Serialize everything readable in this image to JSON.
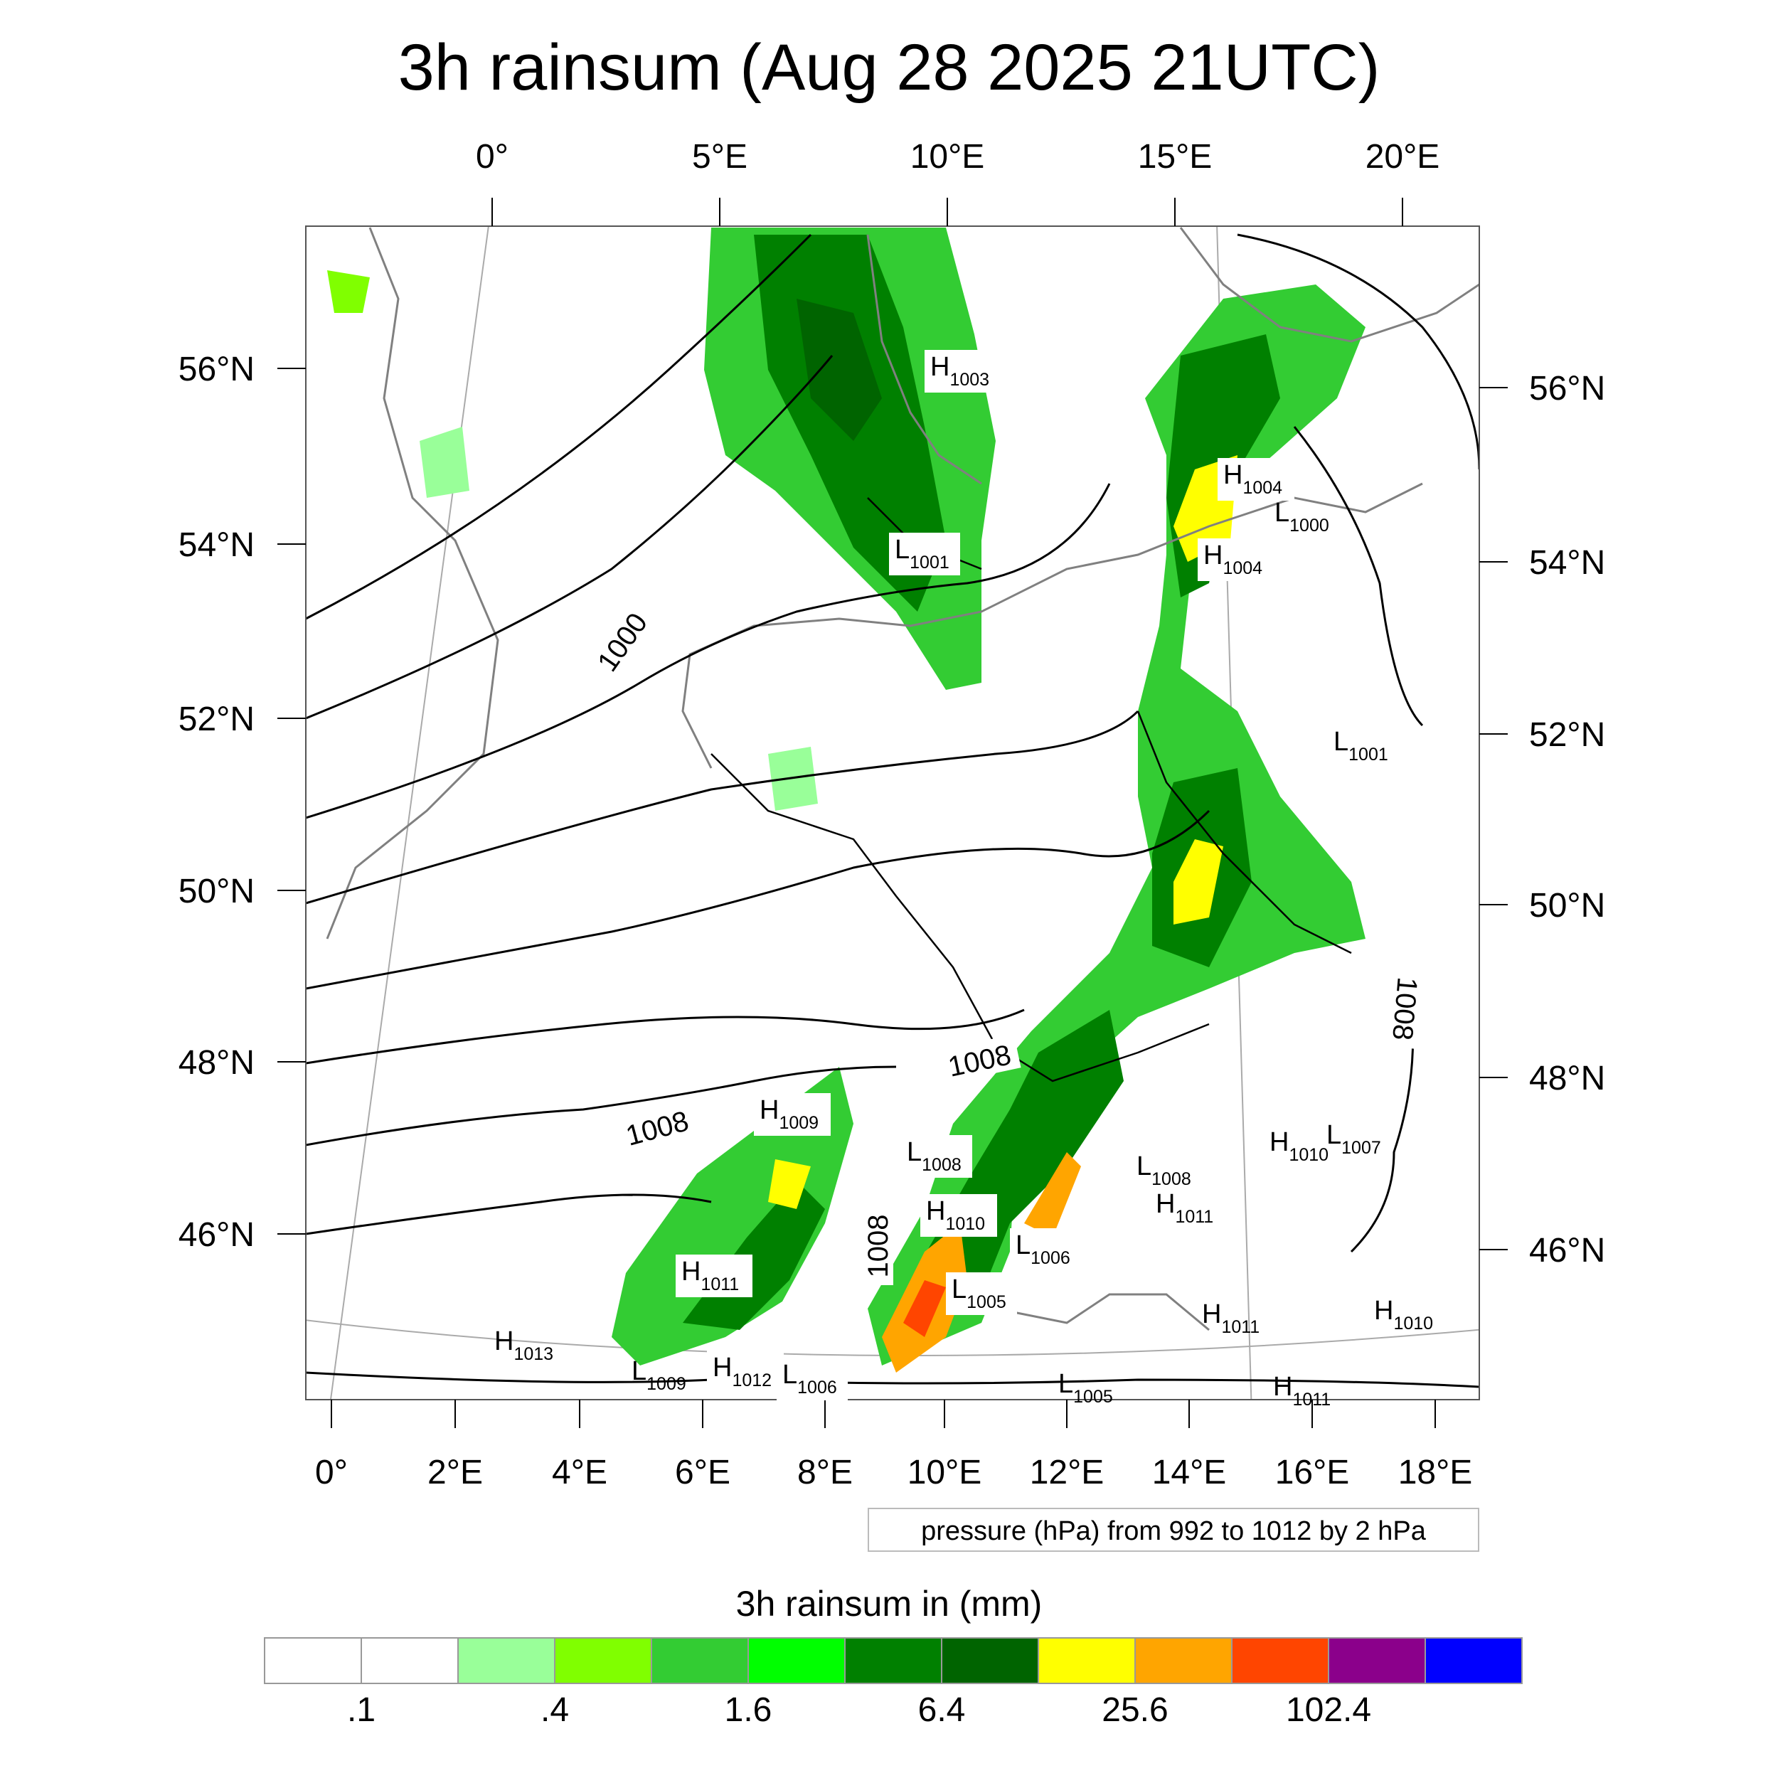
{
  "title": "3h rainsum (Aug 28 2025 21UTC)",
  "top_lon_labels": [
    "0°",
    "5°E",
    "10°E",
    "15°E",
    "20°E"
  ],
  "bottom_lon_labels": [
    "0°",
    "2°E",
    "4°E",
    "6°E",
    "8°E",
    "10°E",
    "12°E",
    "14°E",
    "16°E",
    "18°E"
  ],
  "left_lat_labels": [
    "56°N",
    "54°N",
    "52°N",
    "50°N",
    "48°N",
    "46°N"
  ],
  "right_lat_labels": [
    "56°N",
    "54°N",
    "52°N",
    "50°N",
    "48°N",
    "46°N"
  ],
  "contour_labels": [
    "1000",
    "1008",
    "1008",
    "1008",
    "1008"
  ],
  "pressure_systems": [
    {
      "type": "H",
      "value": "1003"
    },
    {
      "type": "L",
      "value": "1001"
    },
    {
      "type": "H",
      "value": "1004"
    },
    {
      "type": "L",
      "value": "1000"
    },
    {
      "type": "H",
      "value": "1004"
    },
    {
      "type": "L",
      "value": "1001"
    },
    {
      "type": "H",
      "value": "1009"
    },
    {
      "type": "L",
      "value": "1008"
    },
    {
      "type": "H",
      "value": "1010"
    },
    {
      "type": "L",
      "value": "1006"
    },
    {
      "type": "L",
      "value": "1005"
    },
    {
      "type": "L",
      "value": "1008"
    },
    {
      "type": "H",
      "value": "1011"
    },
    {
      "type": "H",
      "value": "1010"
    },
    {
      "type": "L",
      "value": "1007"
    },
    {
      "type": "H",
      "value": "1011"
    },
    {
      "type": "H",
      "value": "1013"
    },
    {
      "type": "L",
      "value": "1009"
    },
    {
      "type": "H",
      "value": "1012"
    },
    {
      "type": "L",
      "value": "1006"
    },
    {
      "type": "H",
      "value": "1011"
    },
    {
      "type": "H",
      "value": "1010"
    },
    {
      "type": "L",
      "value": "1005"
    },
    {
      "type": "H",
      "value": "1011"
    }
  ],
  "info_text": "pressure (hPa) from 992 to 1012 by 2 hPa",
  "colorbar": {
    "title": "3h rainsum in (mm)",
    "colors": [
      "#ffffff",
      "#ffffff",
      "#99ff99",
      "#80ff00",
      "#33cc33",
      "#00ff00",
      "#008000",
      "#006400",
      "#ffff00",
      "#ffa500",
      "#ff4500",
      "#8b008b",
      "#0000ff"
    ],
    "labels": [
      ".1",
      ".4",
      "1.6",
      "6.4",
      "25.6",
      "102.4"
    ]
  },
  "legend_colors": {
    "rain_light": "#99ff99",
    "rain_lime": "#80ff00",
    "rain_mid": "#33cc33",
    "rain_green": "#00ff00",
    "rain_dark": "#008000",
    "rain_darker": "#006400",
    "rain_yellow": "#ffff00",
    "rain_orange": "#ffa500",
    "rain_red": "#ff4500",
    "coast": "#808080",
    "border": "#000000"
  }
}
